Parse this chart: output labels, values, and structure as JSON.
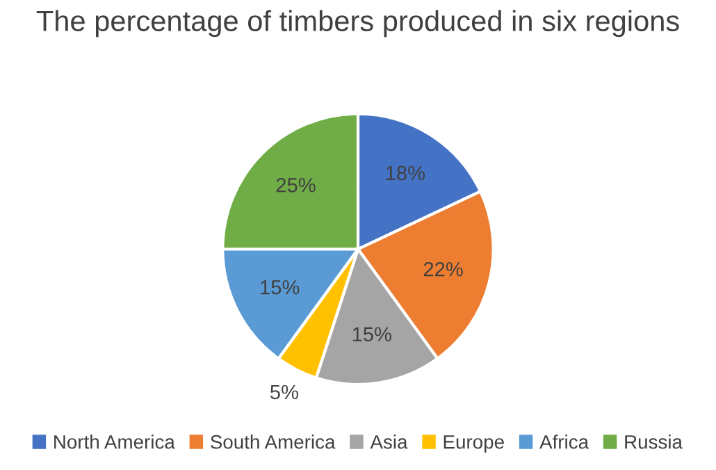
{
  "chart_data": {
    "type": "pie",
    "title": "The percentage of timbers produced in six regions",
    "categories": [
      "North America",
      "South America",
      "Asia",
      "Europe",
      "Africa",
      "Russia"
    ],
    "values": [
      18,
      22,
      15,
      5,
      15,
      25
    ],
    "colors": [
      "#4472c4",
      "#ed7d31",
      "#a5a5a5",
      "#ffc000",
      "#5b9bd5",
      "#70ad47"
    ],
    "value_labels": [
      "18%",
      "22%",
      "15%",
      "5%",
      "15%",
      "25%"
    ],
    "legend": "bottom"
  }
}
